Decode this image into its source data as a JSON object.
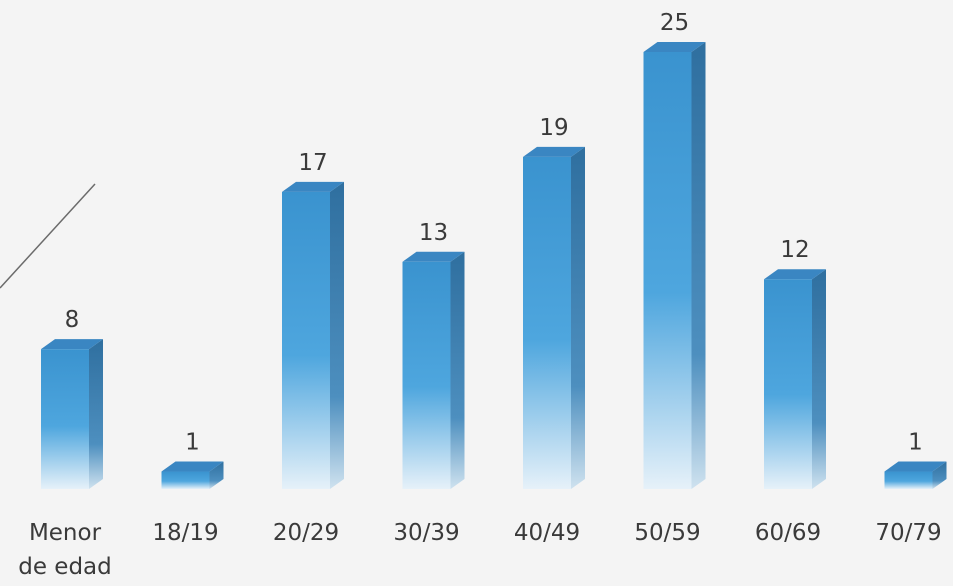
{
  "chart_data": {
    "type": "bar",
    "title": "",
    "xlabel": "",
    "ylabel": "",
    "categories": [
      "Menor de edad",
      "18/19",
      "20/29",
      "30/39",
      "40/49",
      "50/59",
      "60/69",
      "70/79"
    ],
    "category_lines": [
      [
        "Menor",
        "de edad"
      ],
      [
        "18/19"
      ],
      [
        "20/29"
      ],
      [
        "30/39"
      ],
      [
        "40/49"
      ],
      [
        "50/59"
      ],
      [
        "60/69"
      ],
      [
        "70/79"
      ]
    ],
    "values": [
      8,
      1,
      17,
      13,
      19,
      25,
      12,
      1
    ],
    "ylim": [
      0,
      25
    ],
    "grid": false,
    "legend": "none",
    "bar_style": "3d-gradient",
    "colors": {
      "bar_top": "#3a93cf",
      "bar_mid": "#4ea6de",
      "bar_bottom": "#e6f1f9",
      "bar_side": "#2f6f9f",
      "bar_cap": "#3a86c2",
      "background": "#f4f4f4",
      "text": "#3a3a3a"
    }
  }
}
